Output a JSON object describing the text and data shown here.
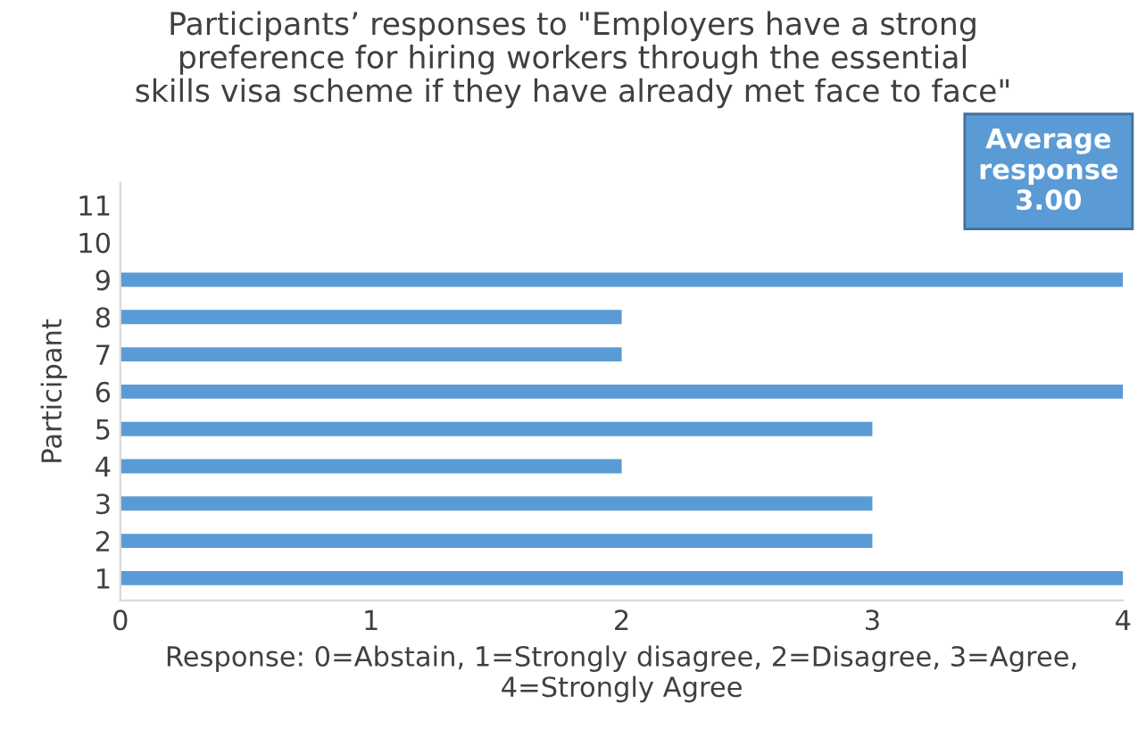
{
  "chart_data": {
    "type": "bar",
    "orientation": "horizontal",
    "title": "Participants’ responses to \"Employers have a strong\npreference for hiring workers through the essential\nskills visa scheme if they have already met face to face\"",
    "categories": [
      "11",
      "10",
      "9",
      "8",
      "7",
      "6",
      "5",
      "4",
      "3",
      "2",
      "1"
    ],
    "values": [
      null,
      null,
      4,
      2,
      2,
      4,
      3,
      2,
      3,
      3,
      4
    ],
    "color": "#5b9bd5",
    "xlim": [
      0,
      4
    ],
    "xticks": [
      0,
      1,
      2,
      3,
      4
    ],
    "xlabel": "Response: 0=Abstain, 1=Strongly disagree, 2=Disagree, 3=Agree,\n4=Strongly Agree",
    "ylabel": "Participant",
    "annotations": [
      "Average\nresponse\n3.00"
    ],
    "grid": false
  }
}
